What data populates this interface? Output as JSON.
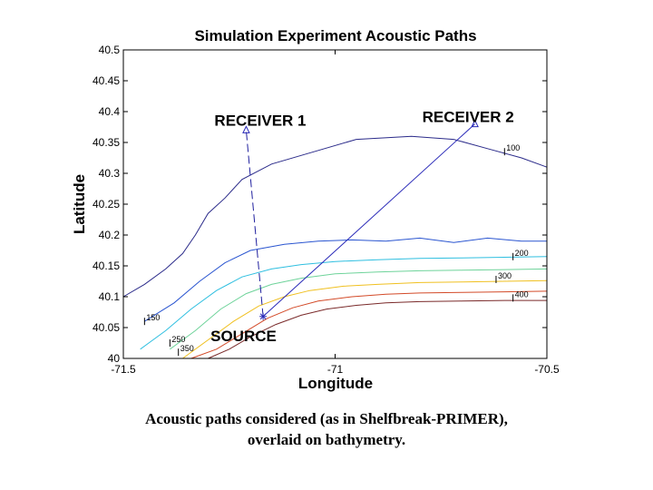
{
  "chart_data": {
    "type": "line",
    "title": "Simulation Experiment Acoustic Paths",
    "xlabel": "Longitude",
    "ylabel": "Latitude",
    "xlim": [
      -71.5,
      -70.5
    ],
    "ylim": [
      40,
      40.5
    ],
    "x_ticks": [
      -71.5,
      -71,
      -70.5
    ],
    "x_tick_labels": [
      "-71.5",
      "-71",
      "-70.5"
    ],
    "y_ticks": [
      40,
      40.05,
      40.1,
      40.15,
      40.2,
      40.25,
      40.3,
      40.35,
      40.4,
      40.45,
      40.5
    ],
    "y_tick_labels": [
      "40",
      "40.05",
      "40.1",
      "40.15",
      "40.2",
      "40.25",
      "40.3",
      "40.35",
      "40.4",
      "40.45",
      "40.5"
    ],
    "points": [
      {
        "name": "SOURCE",
        "lon": -71.17,
        "lat": 40.068,
        "marker": "*"
      },
      {
        "name": "RECEIVER 1",
        "lon": -71.21,
        "lat": 40.37,
        "marker": "triangle"
      },
      {
        "name": "RECEIVER 2",
        "lon": -70.67,
        "lat": 40.38,
        "marker": "triangle"
      }
    ],
    "paths": [
      {
        "name": "path-source-receiver-1",
        "from": "SOURCE",
        "to": "RECEIVER 1",
        "style": "dashed",
        "color": "#1f1f9e"
      },
      {
        "name": "path-source-receiver-2",
        "from": "SOURCE",
        "to": "RECEIVER 2",
        "style": "solid",
        "color": "#2a2ab8"
      }
    ],
    "series": [
      {
        "name": "100",
        "color": "#2b2b8a",
        "x": [
          -71.5,
          -71.45,
          -71.4,
          -71.36,
          -71.33,
          -71.3,
          -71.26,
          -71.22,
          -71.15,
          -71.05,
          -70.95,
          -70.82,
          -70.72,
          -70.64,
          -70.56,
          -70.5
        ],
        "y": [
          40.1,
          40.12,
          40.145,
          40.17,
          40.2,
          40.235,
          40.26,
          40.29,
          40.315,
          40.335,
          40.355,
          40.36,
          40.355,
          40.34,
          40.325,
          40.31
        ]
      },
      {
        "name": "150",
        "color": "#2a55d0",
        "x": [
          -71.45,
          -71.38,
          -71.32,
          -71.26,
          -71.2,
          -71.12,
          -71.04,
          -70.96,
          -70.88,
          -70.8,
          -70.72,
          -70.64,
          -70.56,
          -70.5
        ],
        "y": [
          40.06,
          40.09,
          40.125,
          40.155,
          40.175,
          40.185,
          40.19,
          40.192,
          40.19,
          40.195,
          40.188,
          40.195,
          40.19,
          40.19
        ]
      },
      {
        "name": "200",
        "color": "#2fbfe0",
        "x": [
          -71.46,
          -71.4,
          -71.34,
          -71.28,
          -71.22,
          -71.15,
          -71.08,
          -71.0,
          -70.9,
          -70.8,
          -70.7,
          -70.6,
          -70.5
        ],
        "y": [
          40.015,
          40.045,
          40.08,
          40.11,
          40.132,
          40.145,
          40.152,
          40.157,
          40.16,
          40.162,
          40.163,
          40.164,
          40.165
        ]
      },
      {
        "name": "250",
        "color": "#6ed39a",
        "x": [
          -71.39,
          -71.33,
          -71.27,
          -71.21,
          -71.15,
          -71.08,
          -71.0,
          -70.9,
          -70.8,
          -70.7,
          -70.6,
          -70.5
        ],
        "y": [
          40.015,
          40.045,
          40.08,
          40.105,
          40.12,
          40.13,
          40.137,
          40.14,
          40.142,
          40.143,
          40.144,
          40.145
        ]
      },
      {
        "name": "300",
        "color": "#f0c020",
        "x": [
          -71.36,
          -71.3,
          -71.24,
          -71.18,
          -71.12,
          -71.06,
          -70.98,
          -70.9,
          -70.8,
          -70.7,
          -70.6,
          -70.5
        ],
        "y": [
          40.0,
          40.03,
          40.06,
          40.085,
          40.1,
          40.11,
          40.117,
          40.12,
          40.123,
          40.124,
          40.125,
          40.126
        ]
      },
      {
        "name": "350",
        "color": "#d34a28",
        "x": [
          -71.34,
          -71.28,
          -71.22,
          -71.16,
          -71.1,
          -71.04,
          -70.96,
          -70.88,
          -70.8,
          -70.7,
          -70.6,
          -70.5
        ],
        "y": [
          40.0,
          40.015,
          40.04,
          40.065,
          40.082,
          40.093,
          40.1,
          40.104,
          40.106,
          40.107,
          40.108,
          40.109
        ]
      },
      {
        "name": "400",
        "color": "#7a2a2a",
        "x": [
          -71.3,
          -71.25,
          -71.2,
          -71.14,
          -71.08,
          -71.02,
          -70.95,
          -70.88,
          -70.8,
          -70.7,
          -70.6,
          -70.5
        ],
        "y": [
          40.0,
          40.015,
          40.035,
          40.055,
          40.07,
          40.08,
          40.086,
          40.09,
          40.092,
          40.093,
          40.094,
          40.094
        ]
      }
    ],
    "contour_labels": [
      {
        "text": "100",
        "lon": -70.6,
        "lat": 40.335
      },
      {
        "text": "150",
        "lon": -71.45,
        "lat": 40.06
      },
      {
        "text": "200",
        "lon": -70.58,
        "lat": 40.165
      },
      {
        "text": "250",
        "lon": -71.39,
        "lat": 40.025
      },
      {
        "text": "300",
        "lon": -70.62,
        "lat": 40.128
      },
      {
        "text": "350",
        "lon": -71.37,
        "lat": 40.01
      },
      {
        "text": "400",
        "lon": -70.58,
        "lat": 40.098
      }
    ],
    "grid": false
  },
  "caption": {
    "line1": "Acoustic paths considered (as in Shelfbreak-PRIMER),",
    "line2": "overlaid on bathymetry."
  }
}
